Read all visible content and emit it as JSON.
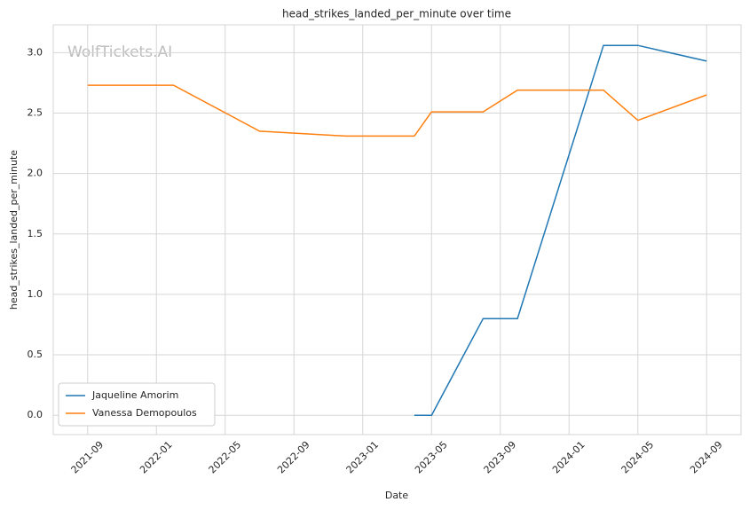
{
  "chart_data": {
    "type": "line",
    "title": "head_strikes_landed_per_minute over time",
    "x_label": "Date",
    "y_label": "head_strikes_landed_per_minute",
    "watermark": "WolfTickets.AI",
    "x": [
      "2021-09",
      "2022-02",
      "2022-07",
      "2022-12",
      "2023-04",
      "2023-05",
      "2023-08",
      "2023-10",
      "2024-03",
      "2024-05",
      "2024-09"
    ],
    "series": [
      {
        "name": "Jaqueline Amorim",
        "color": "#1f77b4",
        "values": [
          null,
          null,
          null,
          null,
          0.0,
          0.0,
          0.8,
          0.8,
          3.06,
          3.06,
          2.93
        ]
      },
      {
        "name": "Vanessa Demopoulos",
        "color": "#ff7f0e",
        "values": [
          2.73,
          2.73,
          2.35,
          2.31,
          2.31,
          2.51,
          2.51,
          2.69,
          2.69,
          2.44,
          2.65
        ]
      }
    ],
    "xlim": [
      "2021-07",
      "2024-11"
    ],
    "xticks": [
      "2021-09",
      "2022-01",
      "2022-05",
      "2022-09",
      "2023-01",
      "2023-05",
      "2023-09",
      "2024-01",
      "2024-05",
      "2024-09"
    ],
    "ylim": [
      -0.16,
      3.23
    ],
    "yticks": [
      {
        "value": 0,
        "label": "0.0"
      },
      0.5,
      {
        "value": 1,
        "label": "1.0"
      },
      1.5,
      {
        "value": 2,
        "label": "2.0"
      },
      2.5,
      {
        "value": 3,
        "label": "3.0"
      }
    ],
    "grid": true,
    "legend": "lower left"
  }
}
